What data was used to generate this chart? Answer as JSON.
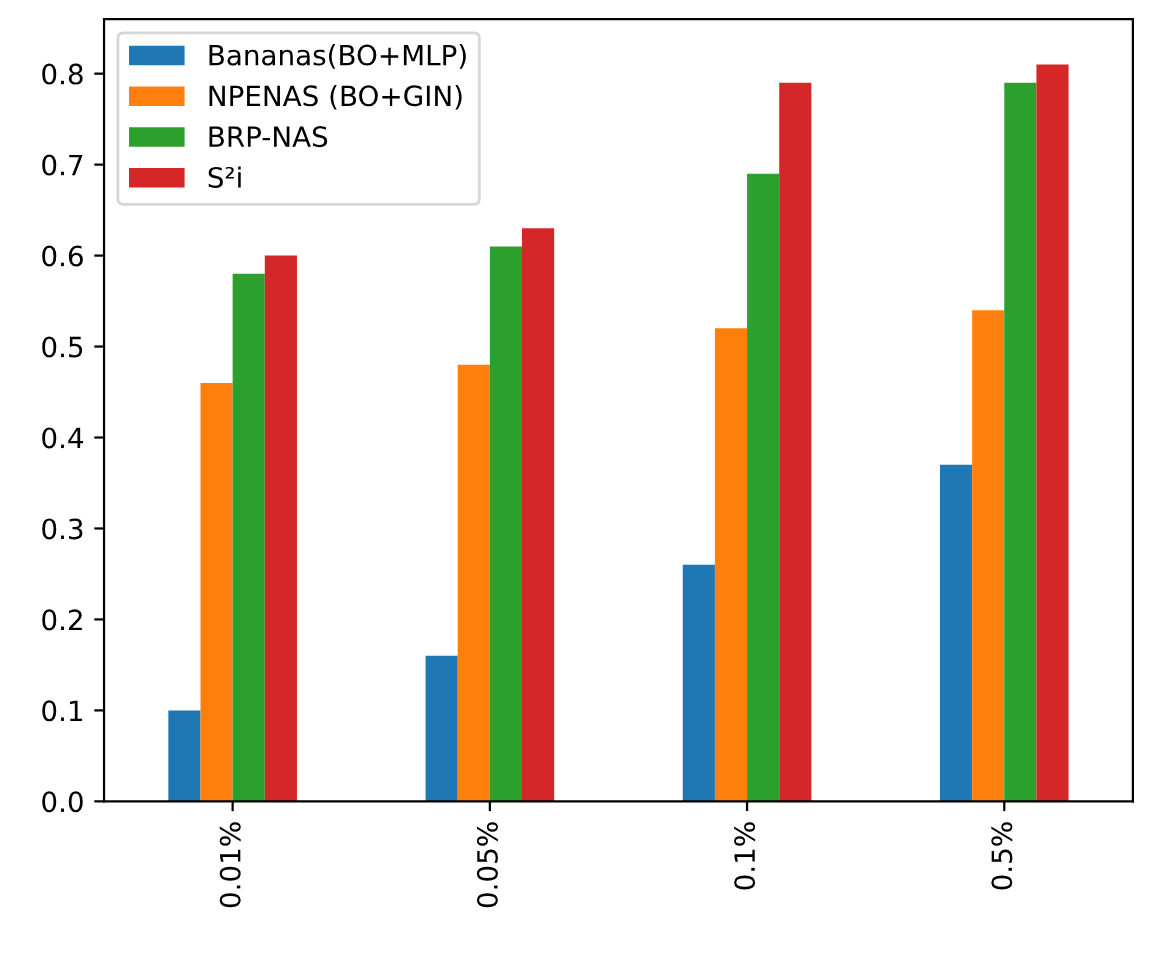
{
  "chart_data": {
    "type": "bar",
    "categories": [
      "0.01%",
      "0.05%",
      "0.1%",
      "0.5%"
    ],
    "series": [
      {
        "name": "Bananas(BO+MLP)",
        "color": "#1f77b4",
        "values": [
          0.1,
          0.16,
          0.26,
          0.37
        ]
      },
      {
        "name": "NPENAS (BO+GIN)",
        "color": "#ff7f0e",
        "values": [
          0.46,
          0.48,
          0.52,
          0.54
        ]
      },
      {
        "name": "BRP-NAS",
        "color": "#2ca02c",
        "values": [
          0.58,
          0.61,
          0.69,
          0.79
        ]
      },
      {
        "name": "S²i",
        "color": "#d62728",
        "values": [
          0.6,
          0.63,
          0.79,
          0.81
        ]
      }
    ],
    "ylim": [
      0,
      0.86
    ],
    "yticks": [
      {
        "value": 0,
        "label": "0.0"
      },
      0.1,
      0.2,
      0.3,
      0.4,
      0.5,
      0.6,
      0.7,
      0.8
    ],
    "grid": false,
    "legend": "top left"
  }
}
